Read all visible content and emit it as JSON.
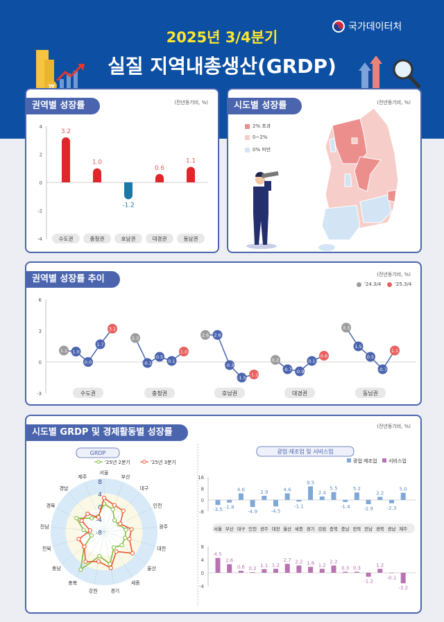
{
  "header": {
    "subtitle": "2025년 3/4분기",
    "title": "실질 지역내총생산(GRDP)",
    "org": "국가데이터처"
  },
  "colors": {
    "header_bg": "#0c4fa3",
    "card_border": "#4a64ad",
    "positive_bar": "#e0262b",
    "negative_bar": "#1b78a8",
    "q2": "#7cba3a",
    "q3": "#e8552f",
    "manufacturing": "#7fa8d6",
    "services": "#b872b0",
    "map_over2": "#eb8e8c",
    "map_0to2": "#f6cdc9",
    "map_under0": "#d3e5f4"
  },
  "chart_data": [
    {
      "type": "bar",
      "title": "권역별 성장률",
      "unit": "(전년동기비, %)",
      "categories": [
        "수도권",
        "충청권",
        "호남권",
        "대경권",
        "동남권"
      ],
      "values": [
        3.2,
        1.0,
        -1.2,
        0.6,
        1.1
      ],
      "ylim": [
        -4,
        4
      ],
      "yticks": [
        "4",
        "2",
        "0",
        "-2",
        "-4"
      ]
    },
    {
      "type": "map",
      "title": "시도별 성장률",
      "unit": "(전년동기비, %)",
      "legend": [
        "2% 초과",
        "0~2%",
        "0% 미만"
      ]
    },
    {
      "type": "line",
      "title": "권역별 성장률 추이",
      "unit": "(전년동기비, %)",
      "legend": [
        "'24.3/4",
        "'25.3/4"
      ],
      "ylim": [
        -3,
        6
      ],
      "yticks": [
        "6",
        "3",
        "0",
        "-3"
      ],
      "groups": [
        {
          "name": "수도권",
          "values": [
            1.1,
            1.0,
            0.0,
            1.7,
            3.2
          ]
        },
        {
          "name": "충청권",
          "values": [
            2.3,
            -0.1,
            0.5,
            0.1,
            1.0
          ]
        },
        {
          "name": "호남권",
          "values": [
            2.6,
            2.6,
            -0.3,
            -1.5,
            -1.2
          ]
        },
        {
          "name": "대경권",
          "values": [
            0.2,
            -0.7,
            -0.9,
            0.1,
            0.6
          ]
        },
        {
          "name": "동남권",
          "values": [
            3.3,
            1.5,
            0.5,
            -0.7,
            1.1
          ]
        }
      ]
    },
    {
      "type": "radar",
      "title": "GRDP",
      "section_title": "시도별 GRDP 및 경제활동별 성장률",
      "unit": "(전년동기비, %)",
      "rticks": [
        "8",
        "4",
        "0",
        "-4",
        "-8"
      ],
      "rlim": [
        -8,
        8
      ],
      "categories": [
        "서울",
        "부산",
        "대구",
        "인천",
        "광주",
        "대전",
        "울산",
        "세종",
        "경기",
        "강원",
        "충북",
        "충남",
        "전북",
        "전남",
        "경북",
        "경남",
        "제주"
      ],
      "series": [
        {
          "name": "'25년 2분기",
          "values": [
            0.9,
            -0.4,
            -3.1,
            -2.8,
            -1.1,
            -1.1,
            -1.0,
            -2.2,
            2.3,
            -0.2,
            6.0,
            -0.1,
            -3.9,
            -1.5,
            1.7,
            -2.2,
            -2.8
          ]
        },
        {
          "name": "'25년 3분기",
          "values": [
            2.7,
            1.0,
            1.0,
            -2.3,
            0.7,
            0.3,
            3.2,
            -0.7,
            3.6,
            1.5,
            3.1,
            -0.2,
            0.3,
            -3.6,
            -0.1,
            -0.3,
            -3.1
          ]
        }
      ]
    },
    {
      "type": "bar",
      "title": "광업·제조업 및 서비스업",
      "categories": [
        "서울",
        "부산",
        "대구",
        "인천",
        "광주",
        "대전",
        "울산",
        "세종",
        "경기",
        "강원",
        "충북",
        "충남",
        "전북",
        "전남",
        "경북",
        "경남",
        "제주"
      ],
      "series": [
        {
          "name": "광업·제조업",
          "values": [
            -3.5,
            -1.8,
            4.6,
            -4.9,
            2.9,
            -4.5,
            4.6,
            -1.1,
            9.5,
            2.4,
            5.5,
            -1.4,
            5.2,
            -2.9,
            2.2,
            -2.3,
            5.0
          ],
          "ylim": [
            -8,
            16
          ],
          "yticks": [
            "16",
            "8",
            "0",
            "-8"
          ]
        },
        {
          "name": "서비스업",
          "values": [
            4.5,
            2.6,
            0.6,
            0.2,
            1.1,
            1.2,
            2.7,
            2.2,
            1.8,
            1.2,
            2.2,
            0.3,
            0.3,
            -1.2,
            1.2,
            -0.1,
            -3.2
          ],
          "ylim": [
            -4,
            8
          ],
          "yticks": [
            "8",
            "4",
            "0",
            "-4"
          ]
        }
      ]
    }
  ]
}
